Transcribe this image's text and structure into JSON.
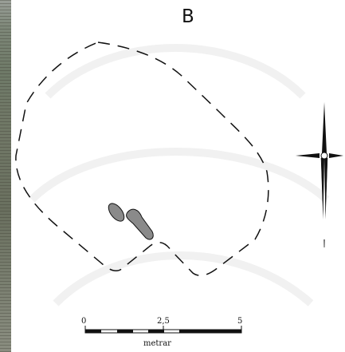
{
  "figure_letter": "B",
  "scale": {
    "tick_0": "0",
    "tick_mid": "2,5",
    "tick_end": "5",
    "unit": "metrar"
  },
  "colors": {
    "outline": "#111111",
    "stones_fill": "#8a8a8a",
    "photo_strip": "#727a68"
  },
  "icons": {
    "north_arrow": "north-arrow-compass-icon"
  }
}
